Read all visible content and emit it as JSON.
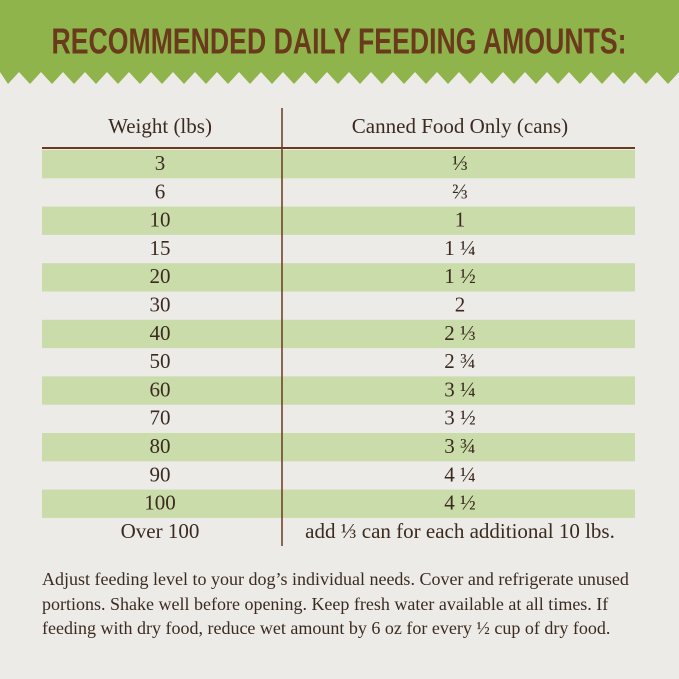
{
  "header": {
    "title": "RECOMMENDED DAILY FEEDING AMOUNTS:"
  },
  "table": {
    "columns": [
      "Weight (lbs)",
      "Canned Food Only (cans)"
    ],
    "rows": [
      [
        "3",
        "⅓"
      ],
      [
        "6",
        "⅔"
      ],
      [
        "10",
        "1"
      ],
      [
        "15",
        "1 ¼"
      ],
      [
        "20",
        "1 ½"
      ],
      [
        "30",
        "2"
      ],
      [
        "40",
        "2 ⅓"
      ],
      [
        "50",
        "2 ¾"
      ],
      [
        "60",
        "3 ¼"
      ],
      [
        "70",
        "3 ½"
      ],
      [
        "80",
        "3 ¾"
      ],
      [
        "90",
        "4 ¼"
      ],
      [
        "100",
        "4 ½"
      ],
      [
        "Over 100",
        "add ⅓ can for each additional 10 lbs."
      ]
    ]
  },
  "footnote": "Adjust feeding level to your dog’s individual needs. Cover and refrigerate unused portions. Shake well before opening. Keep fresh water available at all times. If feeding with dry food, reduce wet amount by 6 oz for every ½ cup of dry food."
}
